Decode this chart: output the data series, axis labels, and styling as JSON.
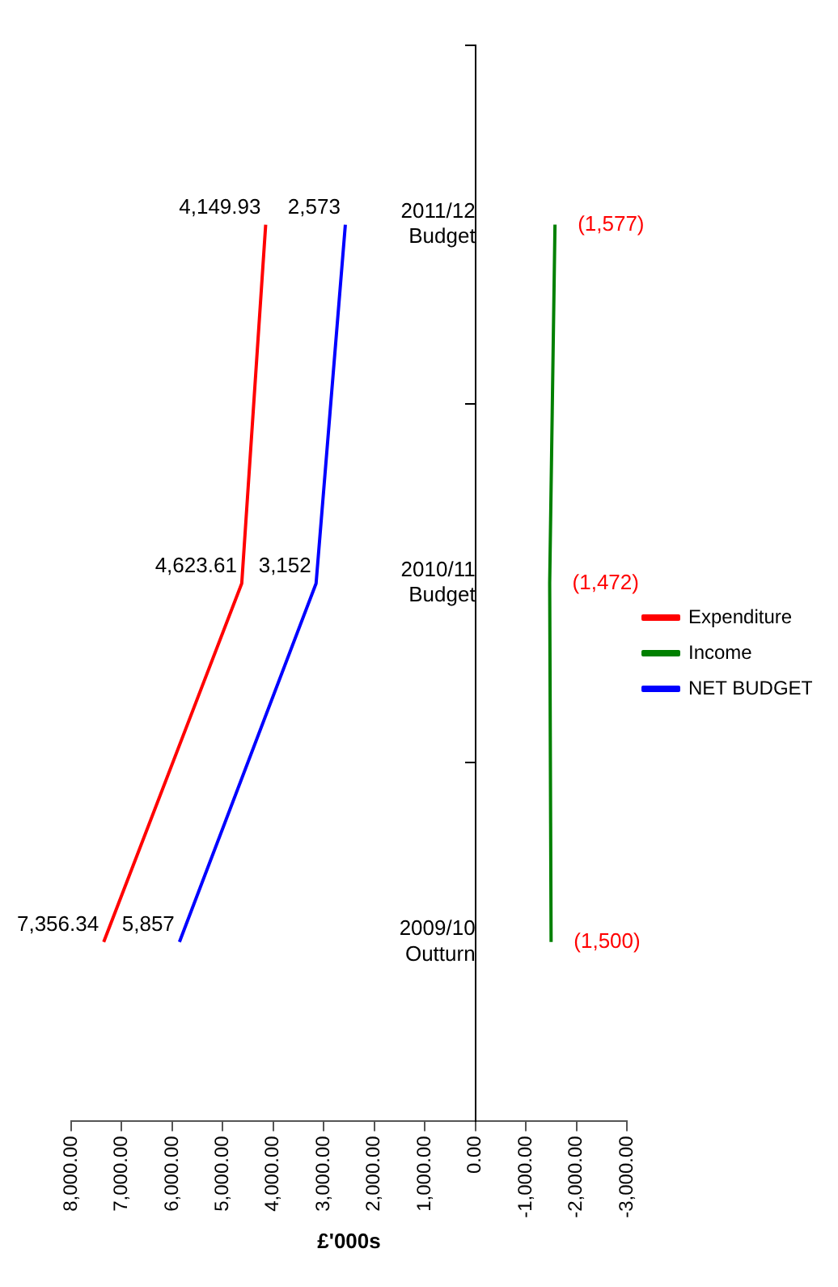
{
  "chart_data": {
    "type": "line",
    "orientation": "horizontal",
    "xlabel": "£'000s",
    "categories": [
      "2011/12 Budget",
      "2010/11 Budget",
      "2009/10 Outturn"
    ],
    "series": [
      {
        "name": "Expenditure",
        "color": "#ff0000",
        "values": [
          4149.93,
          4623.61,
          7356.34
        ],
        "value_labels": [
          "4,149.93",
          "4,623.61",
          "7,356.34"
        ]
      },
      {
        "name": "Income",
        "color": "#008000",
        "values": [
          -1577,
          -1472,
          -1500
        ],
        "value_labels": [
          "(1,577)",
          "(1,472)",
          "(1,500)"
        ]
      },
      {
        "name": "NET BUDGET",
        "color": "#0000ff",
        "values": [
          2573,
          3152,
          5857
        ],
        "value_labels": [
          "2,573",
          "3,152",
          "5,857"
        ]
      }
    ],
    "xlim": [
      8000,
      -3000
    ],
    "xticks": [
      {
        "value": 8000,
        "label": "8,000.00"
      },
      {
        "value": 7000,
        "label": "7,000.00"
      },
      {
        "value": 6000,
        "label": "6,000.00"
      },
      {
        "value": 5000,
        "label": "5,000.00"
      },
      {
        "value": 4000,
        "label": "4,000.00"
      },
      {
        "value": 3000,
        "label": "3,000.00"
      },
      {
        "value": 2000,
        "label": "2,000.00"
      },
      {
        "value": 1000,
        "label": "1,000.00"
      },
      {
        "value": 0,
        "label": "0.00"
      },
      {
        "value": -1000,
        "label": "-1,000.00"
      },
      {
        "value": -2000,
        "label": "-2,000.00"
      },
      {
        "value": -3000,
        "label": "-3,000.00"
      }
    ],
    "legend": "right",
    "marker": "none",
    "line_style": "solid"
  }
}
